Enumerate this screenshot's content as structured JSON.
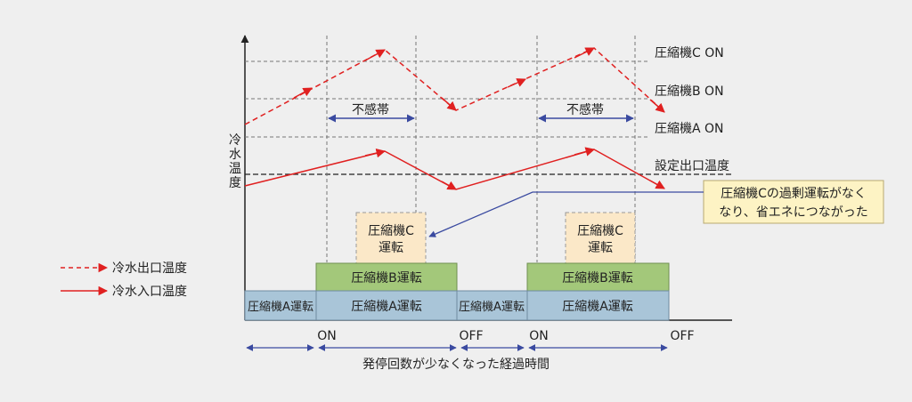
{
  "y_axis_label": [
    "冷",
    "水",
    "温",
    "度"
  ],
  "thresholds": {
    "c_on": "圧縮機C ON",
    "b_on": "圧縮機B ON",
    "a_on": "圧縮機A ON",
    "setpoint": "設定出口温度"
  },
  "deadband_label": "不感帯",
  "callout": {
    "line1": "圧縮機Cの過剰運転がなく",
    "line2": "なり、省エネにつながった"
  },
  "blocks": {
    "compressor_c": {
      "line1": "圧縮機C",
      "line2": "運転"
    },
    "compressor_b": "圧縮機B運転",
    "compressor_a": "圧縮機A運転"
  },
  "legend": {
    "outlet": "冷水出口温度",
    "inlet": "冷水入口温度"
  },
  "x_axis": {
    "on_label": "ON",
    "off_label": "OFF",
    "caption": "発停回数が少なくなった経過時間"
  },
  "colors": {
    "outlet_line": "#e02020",
    "inlet_line": "#e02020",
    "compressor_a_fill": "#a9c5d8",
    "compressor_b_fill": "#a3c87a",
    "compressor_c_fill": "#fbe8c8",
    "callout_fill": "#fdf3c4",
    "arrow": "#3a4aa0"
  }
}
